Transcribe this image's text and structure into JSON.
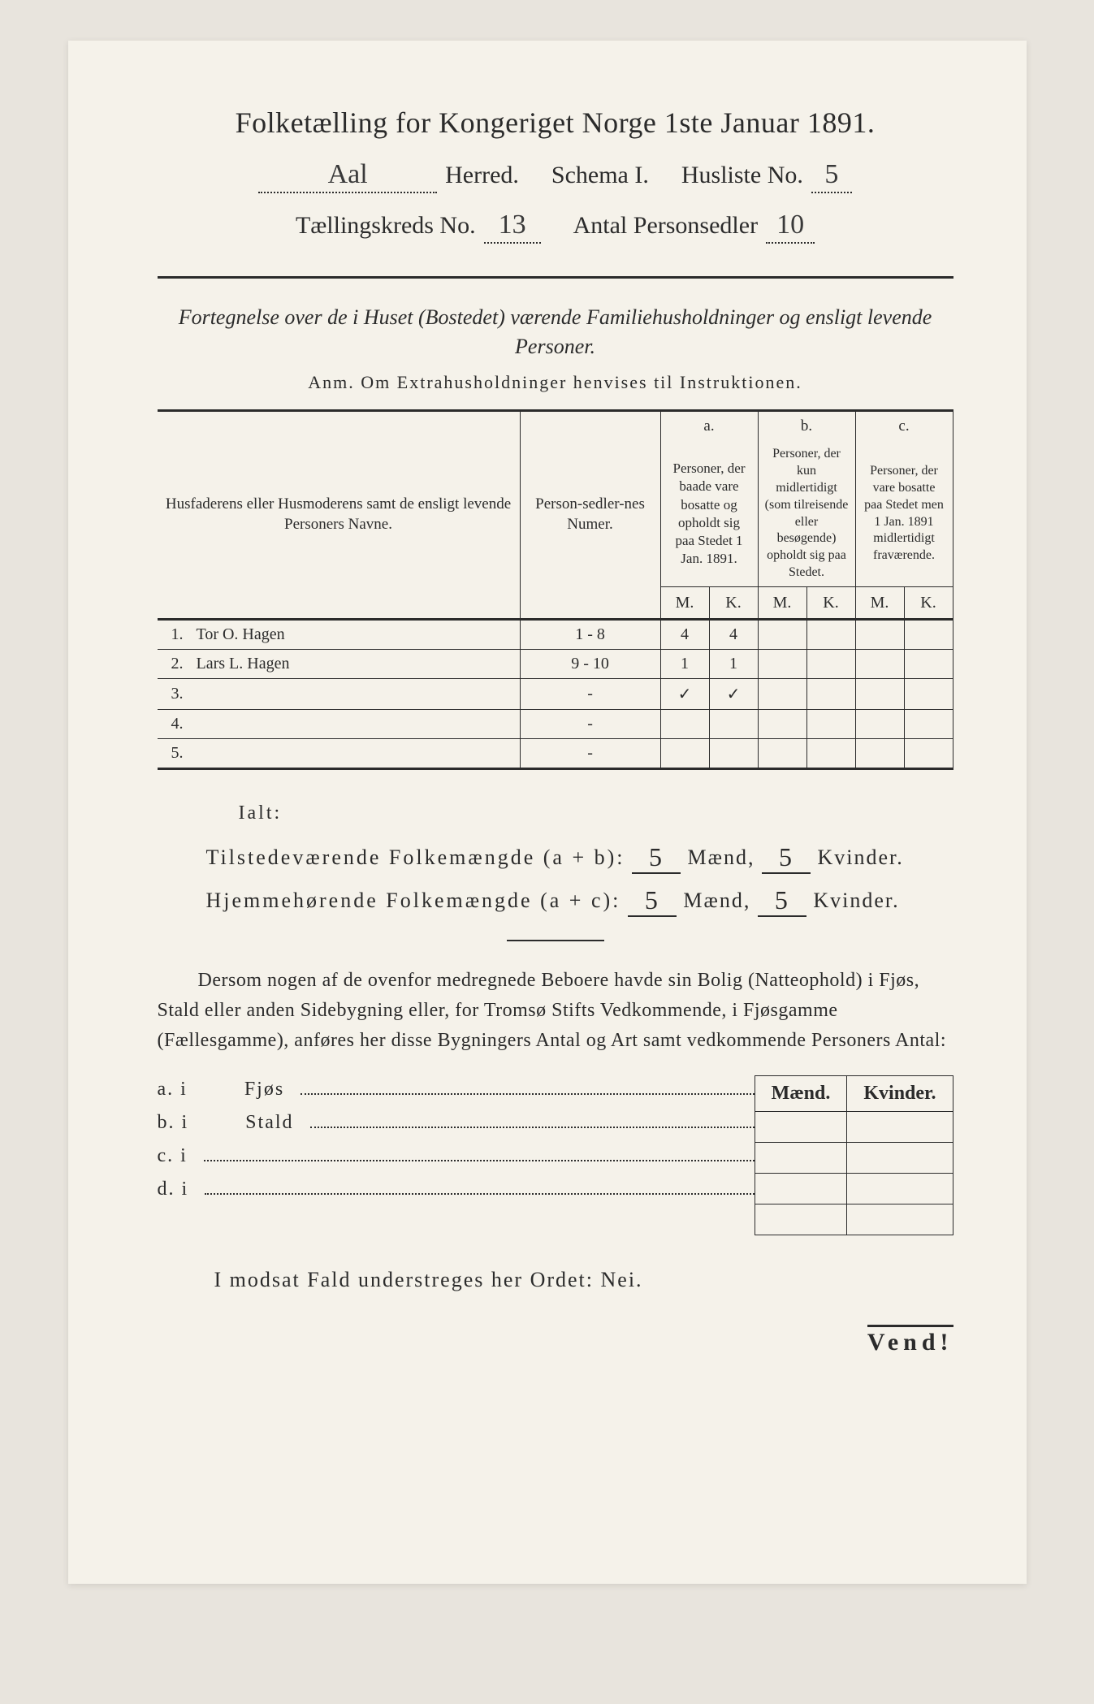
{
  "title": "Folketælling for Kongeriget Norge 1ste Januar 1891.",
  "header": {
    "herred_value": "Aal",
    "herred_label": "Herred.",
    "schema_label": "Schema I.",
    "husliste_label": "Husliste No.",
    "husliste_value": "5",
    "kreds_label": "Tællingskreds No.",
    "kreds_value": "13",
    "antal_label": "Antal Personsedler",
    "antal_value": "10"
  },
  "subtitle": "Fortegnelse over de i Huset (Bostedet) værende Familiehusholdninger og ensligt levende Personer.",
  "anm": "Anm. Om Extrahusholdninger henvises til Instruktionen.",
  "table": {
    "col_name": "Husfaderens eller Husmoderens samt de ensligt levende Personers Navne.",
    "col_num": "Person-sedler-nes Numer.",
    "col_a_head": "a.",
    "col_a": "Personer, der baade vare bosatte og opholdt sig paa Stedet 1 Jan. 1891.",
    "col_b_head": "b.",
    "col_b": "Personer, der kun midlertidigt (som tilreisende eller besøgende) opholdt sig paa Stedet.",
    "col_c_head": "c.",
    "col_c": "Personer, der vare bosatte paa Stedet men 1 Jan. 1891 midlertidigt fraværende.",
    "m": "M.",
    "k": "K.",
    "rows": [
      {
        "n": "1.",
        "name": "Tor O. Hagen",
        "num": "1 - 8",
        "am": "4",
        "ak": "4",
        "bm": "",
        "bk": "",
        "cm": "",
        "ck": ""
      },
      {
        "n": "2.",
        "name": "Lars L. Hagen",
        "num": "9 - 10",
        "am": "1",
        "ak": "1",
        "bm": "",
        "bk": "",
        "cm": "",
        "ck": ""
      },
      {
        "n": "3.",
        "name": "",
        "num": "-",
        "am": "✓",
        "ak": "✓",
        "bm": "",
        "bk": "",
        "cm": "",
        "ck": ""
      },
      {
        "n": "4.",
        "name": "",
        "num": "-",
        "am": "",
        "ak": "",
        "bm": "",
        "bk": "",
        "cm": "",
        "ck": ""
      },
      {
        "n": "5.",
        "name": "",
        "num": "-",
        "am": "",
        "ak": "",
        "bm": "",
        "bk": "",
        "cm": "",
        "ck": ""
      }
    ]
  },
  "ialt": "Ialt:",
  "totals": {
    "line1_label": "Tilstedeværende Folkemængde (a + b):",
    "line2_label": "Hjemmehørende Folkemængde (a + c):",
    "maend": "Mænd,",
    "kvinder": "Kvinder.",
    "v1m": "5",
    "v1k": "5",
    "v2m": "5",
    "v2k": "5"
  },
  "para": "Dersom nogen af de ovenfor medregnede Beboere havde sin Bolig (Natteophold) i Fjøs, Stald eller anden Sidebygning eller, for Tromsø Stifts Vedkommende, i Fjøsgamme (Fællesgamme), anføres her disse Bygningers Antal og Art samt vedkommende Personers Antal:",
  "abcd": {
    "a": "a.  i",
    "a_label": "Fjøs",
    "b": "b.  i",
    "b_label": "Stald",
    "c": "c.  i",
    "d": "d.  i"
  },
  "mk": {
    "m": "Mænd.",
    "k": "Kvinder."
  },
  "modsat": "I modsat Fald understreges her Ordet: Nei.",
  "vend": "Vend!"
}
